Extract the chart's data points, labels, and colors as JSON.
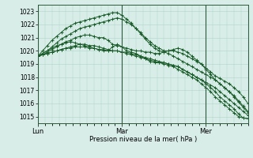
{
  "title": "",
  "xlabel": "Pression niveau de la mer( hPa )",
  "bg_color": "#d8ede8",
  "grid_color": "#b0d4c8",
  "line_color": "#1a5c2a",
  "ylim": [
    1014.5,
    1023.5
  ],
  "yticks": [
    1015,
    1016,
    1017,
    1018,
    1019,
    1020,
    1021,
    1022,
    1023
  ],
  "day_labels": [
    "Lun",
    "Mar",
    "Mer"
  ],
  "day_positions": [
    0,
    24,
    48
  ],
  "xlim": [
    0,
    60
  ],
  "series": [
    [
      1019.6,
      1019.7,
      1019.8,
      1019.9,
      1020.0,
      1020.1,
      1020.2,
      1020.3,
      1020.4,
      1020.5,
      1020.5,
      1020.4,
      1020.4,
      1020.3,
      1020.2,
      1020.1,
      1020.0,
      1020.0,
      1019.9,
      1019.8,
      1019.7,
      1019.6,
      1019.5,
      1019.4,
      1019.3,
      1019.2,
      1019.1,
      1019.0,
      1018.9,
      1018.8,
      1018.6,
      1018.4,
      1018.2,
      1018.0,
      1017.8,
      1017.5,
      1017.2,
      1016.9,
      1016.5,
      1016.2,
      1015.9,
      1015.6,
      1015.3,
      1015.0,
      1014.9,
      1014.85
    ],
    [
      1019.6,
      1019.8,
      1020.0,
      1020.3,
      1020.6,
      1020.9,
      1021.1,
      1021.3,
      1021.5,
      1021.7,
      1021.8,
      1021.9,
      1022.0,
      1022.1,
      1022.2,
      1022.3,
      1022.4,
      1022.5,
      1022.4,
      1022.2,
      1022.0,
      1021.7,
      1021.4,
      1021.0,
      1020.7,
      1020.4,
      1020.2,
      1020.0,
      1020.0,
      1020.0,
      1019.9,
      1019.8,
      1019.6,
      1019.4,
      1019.2,
      1019.0,
      1018.7,
      1018.4,
      1018.1,
      1017.9,
      1017.7,
      1017.5,
      1017.2,
      1016.9,
      1016.5,
      1016.0
    ],
    [
      1019.6,
      1020.0,
      1020.4,
      1020.8,
      1021.1,
      1021.4,
      1021.7,
      1021.9,
      1022.1,
      1022.2,
      1022.3,
      1022.4,
      1022.5,
      1022.6,
      1022.7,
      1022.8,
      1022.9,
      1022.9,
      1022.7,
      1022.4,
      1022.1,
      1021.7,
      1021.3,
      1020.9,
      1020.5,
      1020.2,
      1020.0,
      1019.9,
      1019.8,
      1019.6,
      1019.4,
      1019.2,
      1019.0,
      1018.8,
      1018.6,
      1018.4,
      1018.2,
      1018.0,
      1017.8,
      1017.5,
      1017.2,
      1016.9,
      1016.5,
      1016.1,
      1015.7,
      1015.3
    ],
    [
      1019.6,
      1019.8,
      1020.0,
      1020.2,
      1020.4,
      1020.5,
      1020.6,
      1020.7,
      1020.6,
      1020.5,
      1020.4,
      1020.3,
      1020.2,
      1020.1,
      1020.0,
      1020.0,
      1020.3,
      1020.5,
      1020.3,
      1020.0,
      1019.9,
      1019.8,
      1019.6,
      1019.4,
      1019.2,
      1019.1,
      1019.1,
      1019.1,
      1019.0,
      1018.9,
      1018.8,
      1018.6,
      1018.4,
      1018.2,
      1018.0,
      1017.8,
      1017.5,
      1017.2,
      1016.9,
      1016.5,
      1016.2,
      1015.9,
      1015.6,
      1015.2,
      1014.9,
      1014.85
    ],
    [
      1019.6,
      1019.7,
      1019.8,
      1019.9,
      1020.0,
      1020.1,
      1020.2,
      1020.2,
      1020.3,
      1020.3,
      1020.3,
      1020.2,
      1020.2,
      1020.1,
      1020.1,
      1020.0,
      1020.0,
      1020.0,
      1019.9,
      1019.9,
      1019.8,
      1019.7,
      1019.6,
      1019.5,
      1019.4,
      1019.3,
      1019.2,
      1019.1,
      1019.0,
      1018.9,
      1018.8,
      1018.6,
      1018.4,
      1018.2,
      1018.0,
      1017.8,
      1017.6,
      1017.4,
      1017.2,
      1016.9,
      1016.6,
      1016.3,
      1016.0,
      1015.7,
      1015.4,
      1015.1
    ],
    [
      1019.6,
      1019.7,
      1019.9,
      1020.1,
      1020.3,
      1020.5,
      1020.7,
      1020.8,
      1021.0,
      1021.1,
      1021.2,
      1021.2,
      1021.1,
      1021.0,
      1021.0,
      1020.8,
      1020.5,
      1020.4,
      1020.3,
      1020.2,
      1020.1,
      1020.0,
      1020.0,
      1019.9,
      1019.9,
      1019.8,
      1019.8,
      1019.9,
      1020.0,
      1020.1,
      1020.2,
      1020.1,
      1019.9,
      1019.6,
      1019.3,
      1019.0,
      1018.6,
      1018.2,
      1017.8,
      1017.5,
      1017.2,
      1016.9,
      1016.6,
      1016.2,
      1015.8,
      1015.4
    ]
  ]
}
